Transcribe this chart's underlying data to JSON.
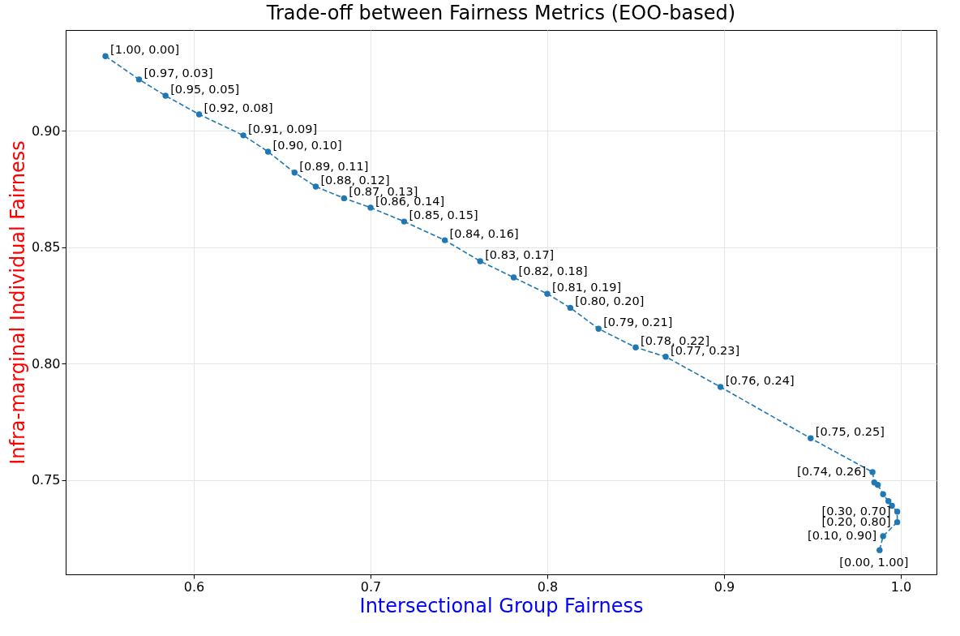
{
  "chart_data": {
    "type": "line",
    "title": "Trade-off between Fairness Metrics (EOO-based)",
    "xlabel": "Intersectional Group Fairness",
    "ylabel": "Infra-marginal Individual Fairness",
    "xlim": [
      0.5275,
      1.0202
    ],
    "ylim": [
      0.7096,
      0.9432
    ],
    "xticks": [
      {
        "value": 0.6,
        "label": "0.6"
      },
      {
        "value": 0.7,
        "label": "0.7"
      },
      {
        "value": 0.8,
        "label": "0.8"
      },
      {
        "value": 0.9,
        "label": "0.9"
      },
      {
        "value": 1.0,
        "label": "1.0"
      }
    ],
    "yticks": [
      {
        "value": 0.75,
        "label": "0.75"
      },
      {
        "value": 0.8,
        "label": "0.80"
      },
      {
        "value": 0.85,
        "label": "0.85"
      },
      {
        "value": 0.9,
        "label": "0.90"
      }
    ],
    "grid": true,
    "marker": "circle",
    "line_style": "dashed",
    "series": [
      {
        "color": "#1f77b4",
        "x": [
          0.55,
          0.569,
          0.584,
          0.603,
          0.628,
          0.642,
          0.657,
          0.669,
          0.685,
          0.7,
          0.719,
          0.742,
          0.762,
          0.781,
          0.8,
          0.813,
          0.829,
          0.85,
          0.867,
          0.898,
          0.949,
          0.984,
          0.985,
          0.987,
          0.99,
          0.993,
          0.995,
          0.998,
          0.998,
          0.99,
          0.988
        ],
        "values": [
          0.932,
          0.922,
          0.915,
          0.907,
          0.898,
          0.891,
          0.882,
          0.876,
          0.871,
          0.867,
          0.861,
          0.853,
          0.844,
          0.837,
          0.83,
          0.824,
          0.815,
          0.807,
          0.803,
          0.79,
          0.768,
          0.7535,
          0.749,
          0.748,
          0.744,
          0.741,
          0.739,
          0.7365,
          0.732,
          0.726,
          0.72
        ],
        "value_labels": [
          "[1.00, 0.00]",
          "[0.97, 0.03]",
          "[0.95, 0.05]",
          "[0.92, 0.08]",
          "[0.91, 0.09]",
          "[0.90, 0.10]",
          "[0.89, 0.11]",
          "[0.88, 0.12]",
          "[0.87, 0.13]",
          "[0.86, 0.14]",
          "[0.85, 0.15]",
          "[0.84, 0.16]",
          "[0.83, 0.17]",
          "[0.82, 0.18]",
          "[0.81, 0.19]",
          "[0.80, 0.20]",
          "[0.79, 0.21]",
          "[0.78, 0.22]",
          "[0.77, 0.23]",
          "[0.76, 0.24]",
          "[0.75, 0.25]",
          "[0.74, 0.26]",
          null,
          null,
          null,
          null,
          null,
          "[0.30, 0.70]",
          "[0.20, 0.80]",
          "[0.10, 0.90]",
          "[0.00, 1.00]"
        ]
      }
    ]
  }
}
